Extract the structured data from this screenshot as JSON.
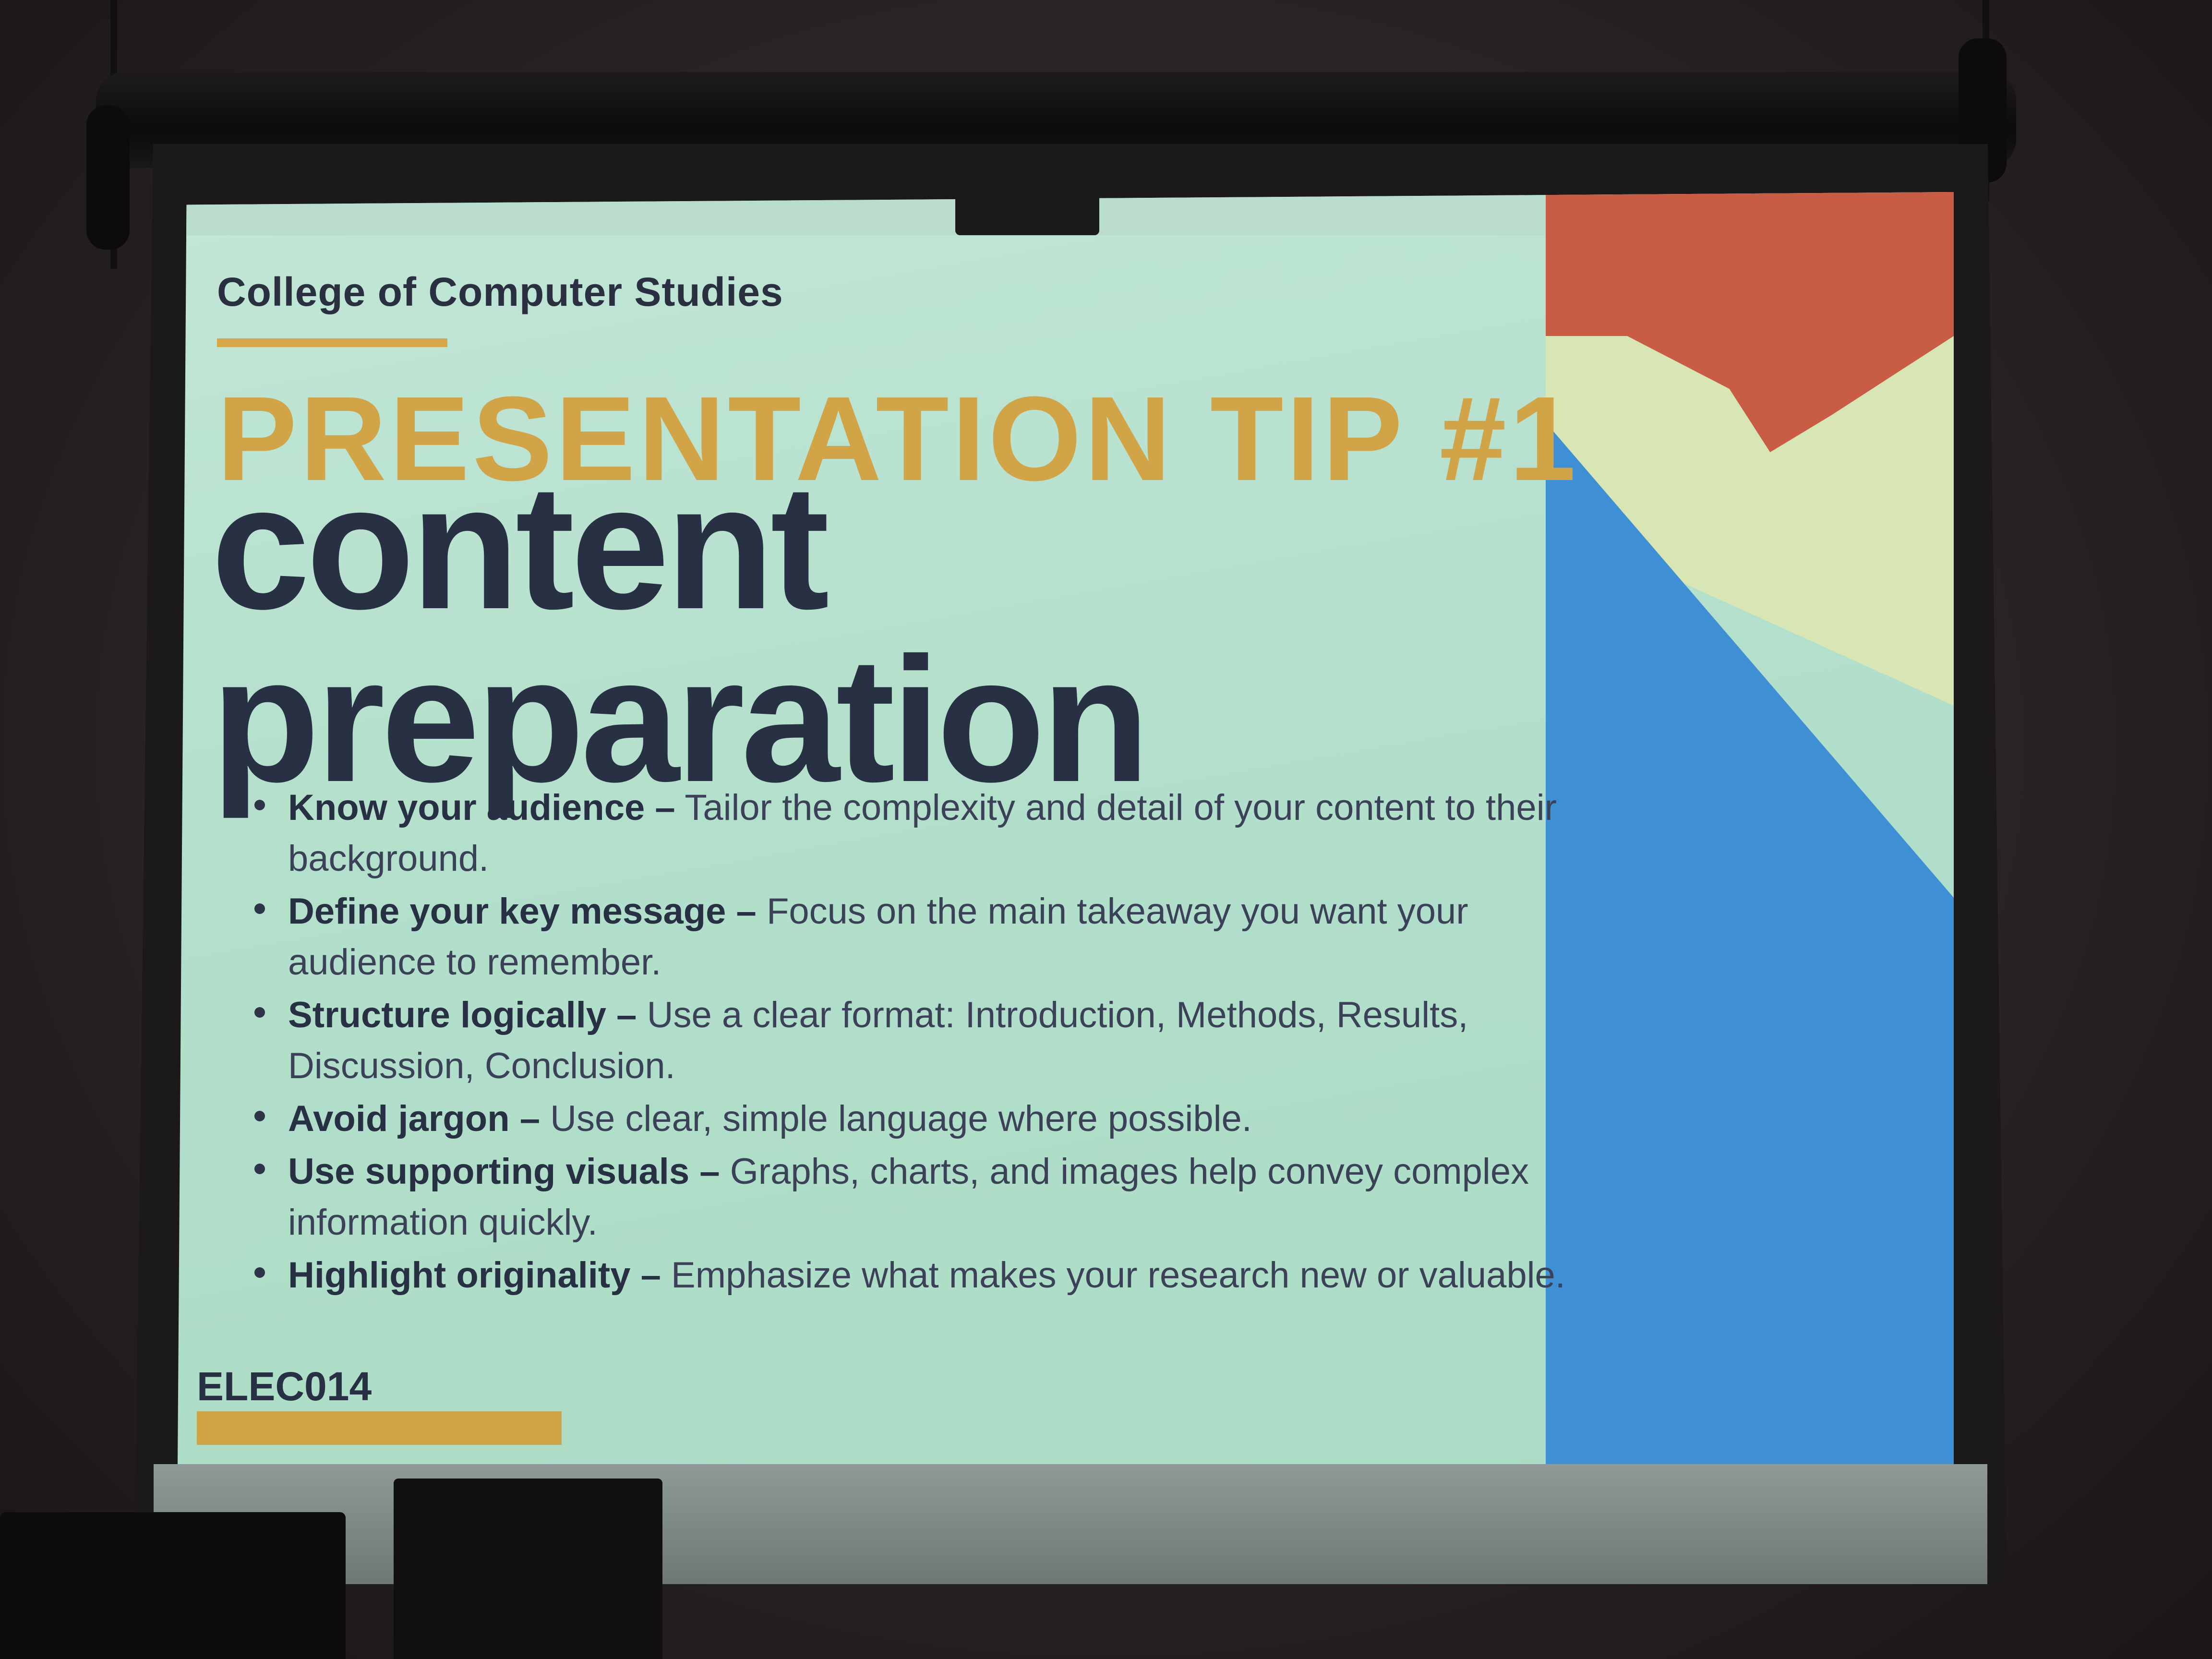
{
  "slide": {
    "college": "College of Computer Studies",
    "tip_title": "PRESENTATION TIP #1",
    "title_line1": "content",
    "title_line2": "preparation",
    "course_code": "ELEC014",
    "accent_color": "#d1a448",
    "bullets": [
      {
        "term": "Know your audience –",
        "text": " Tailor the complexity and detail of your content to their background."
      },
      {
        "term": "Define your key message –",
        "text": " Focus on the main takeaway you want your audience to remember."
      },
      {
        "term": "Structure logically –",
        "text": " Use a clear format: Introduction, Methods, Results, Discussion, Conclusion."
      },
      {
        "term": "Avoid jargon –",
        "text": " Use clear, simple language where possible."
      },
      {
        "term": "Use supporting visuals –",
        "text": " Graphs, charts, and images help convey complex information quickly."
      },
      {
        "term": "Highlight originality –",
        "text": " Emphasize what makes your research new or valuable."
      }
    ]
  }
}
